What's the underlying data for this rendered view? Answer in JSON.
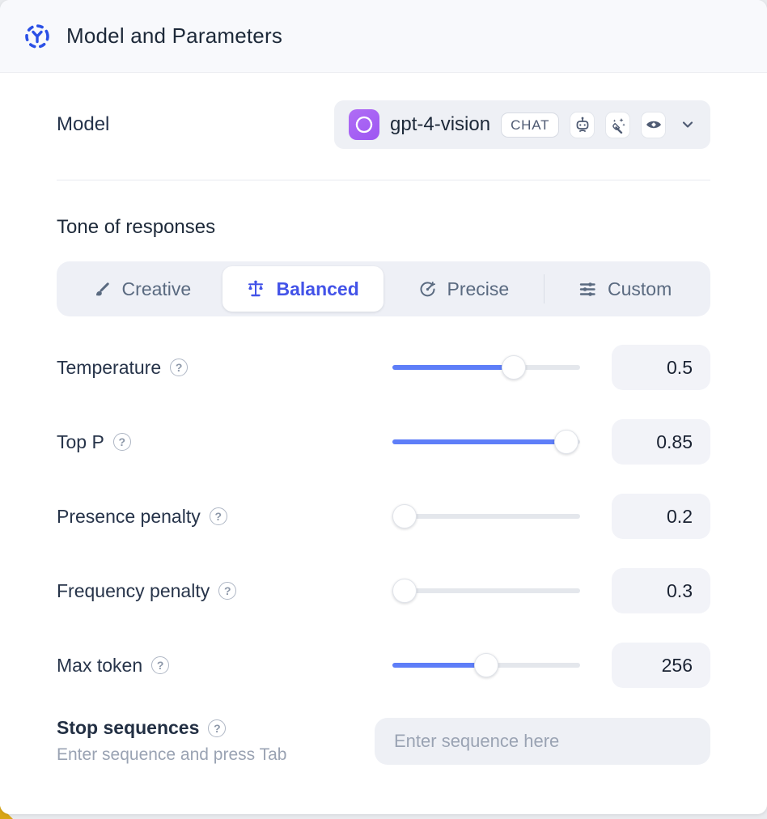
{
  "header": {
    "title": "Model and Parameters",
    "icon": "ai-selector-icon",
    "accent_color": "#2b50e6"
  },
  "model": {
    "label": "Model",
    "value": "gpt-4-vision",
    "provider_icon": "openai-logo",
    "badge_text": "CHAT",
    "capability_icons": [
      "robot-icon",
      "magic-wand-icon",
      "vision-eye-icon"
    ],
    "chevron_icon": "chevron-down-icon"
  },
  "tone": {
    "heading": "Tone of responses",
    "selected": "Balanced",
    "selected_color": "#4353e8",
    "options": [
      {
        "label": "Creative",
        "icon": "paintbrush-icon",
        "selected": false
      },
      {
        "label": "Balanced",
        "icon": "scales-icon",
        "selected": true
      },
      {
        "label": "Precise",
        "icon": "target-icon",
        "selected": false
      },
      {
        "label": "Custom",
        "icon": "sliders-icon",
        "selected": false
      }
    ]
  },
  "parameters": [
    {
      "label": "Temperature",
      "value": "0.5",
      "slider_percent": 67
    },
    {
      "label": "Top P",
      "value": "0.85",
      "slider_percent": 99
    },
    {
      "label": "Presence penalty",
      "value": "0.2",
      "slider_percent": 0
    },
    {
      "label": "Frequency penalty",
      "value": "0.3",
      "slider_percent": 0
    },
    {
      "label": "Max token",
      "value": "256",
      "slider_percent": 50
    }
  ],
  "stop_sequences": {
    "label": "Stop sequences",
    "hint": "Enter sequence and press Tab",
    "placeholder": "Enter sequence here"
  },
  "colors": {
    "slider_fill": "#5e7ef8",
    "header_bg": "#f8f9fc",
    "control_bg": "#eef0f6",
    "value_box_bg": "#f2f3f8"
  }
}
